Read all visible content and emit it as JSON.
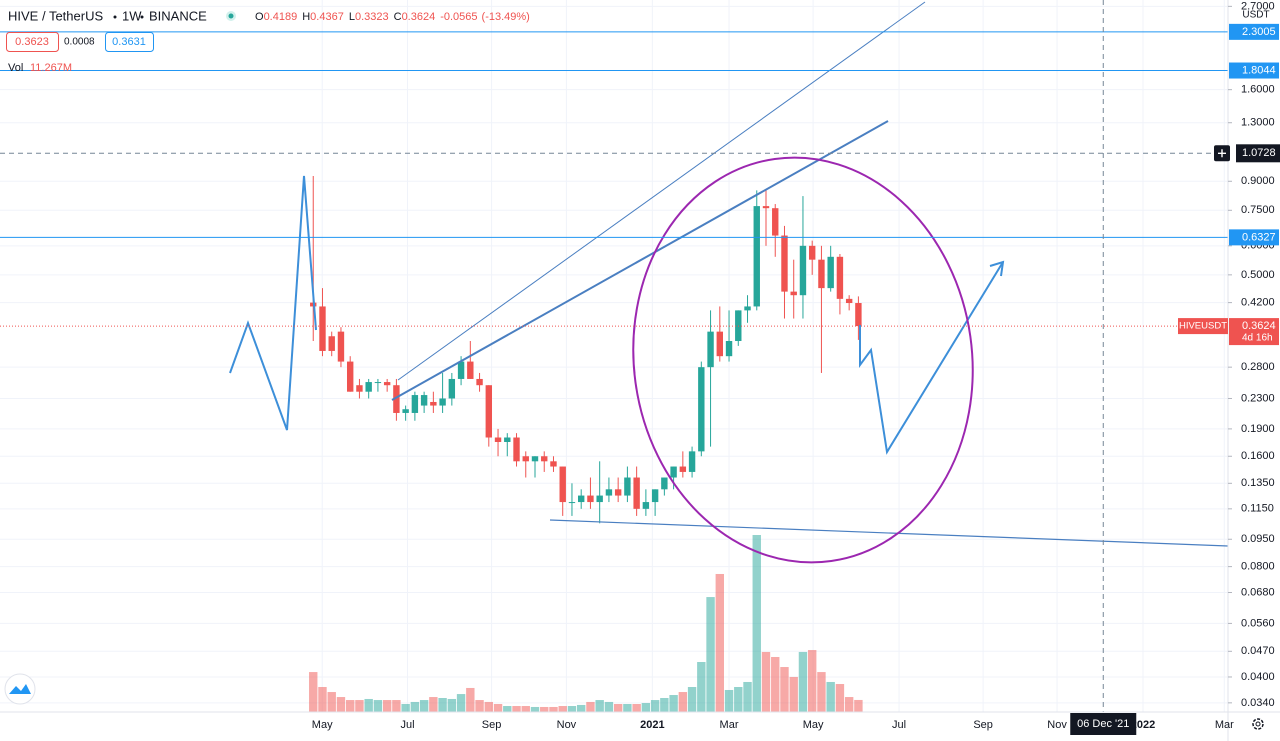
{
  "header": {
    "symbol": "HIVE / TetherUS",
    "interval": "1W",
    "exchange": "BINANCE",
    "ohlc_keys": [
      "O",
      "H",
      "L",
      "C"
    ],
    "change": -0.0565,
    "change_pct": {
      "value": -13.49,
      "label": "(-13.49%)"
    }
  },
  "quote": {
    "bid": 0.3623,
    "spread": 0.0008,
    "ask": 0.3631
  },
  "chart_data": {
    "type": "candlestick",
    "open": [
      0.42,
      0.41,
      0.34,
      0.35,
      0.29,
      0.25,
      0.24,
      0.255,
      0.255,
      0.25,
      0.21,
      0.21,
      0.22,
      0.225,
      0.22,
      0.23,
      0.26,
      0.29,
      0.26,
      0.25,
      0.18,
      0.175,
      0.18,
      0.16,
      0.155,
      0.16,
      0.155,
      0.15,
      0.12,
      0.12,
      0.125,
      0.12,
      0.125,
      0.13,
      0.125,
      0.14,
      0.115,
      0.12,
      0.13,
      0.14,
      0.15,
      0.145,
      0.165,
      0.28,
      0.35,
      0.3,
      0.33,
      0.4,
      0.41,
      0.77,
      0.76,
      0.64,
      0.45,
      0.44,
      0.6,
      0.55,
      0.46,
      0.56,
      0.43,
      0.4189
    ],
    "high": [
      0.93,
      0.46,
      0.35,
      0.36,
      0.3,
      0.26,
      0.26,
      0.26,
      0.26,
      0.26,
      0.22,
      0.24,
      0.24,
      0.24,
      0.27,
      0.27,
      0.3,
      0.33,
      0.27,
      0.25,
      0.19,
      0.185,
      0.185,
      0.165,
      0.16,
      0.165,
      0.16,
      0.15,
      0.135,
      0.13,
      0.14,
      0.155,
      0.14,
      0.14,
      0.15,
      0.15,
      0.13,
      0.13,
      0.14,
      0.15,
      0.165,
      0.17,
      0.29,
      0.4,
      0.41,
      0.4,
      0.4,
      0.44,
      0.85,
      0.85,
      0.78,
      0.68,
      0.55,
      0.82,
      0.62,
      0.6,
      0.6,
      0.57,
      0.44,
      0.4367
    ],
    "low": [
      0.33,
      0.3,
      0.3,
      0.28,
      0.24,
      0.23,
      0.23,
      0.24,
      0.24,
      0.2,
      0.2,
      0.2,
      0.21,
      0.21,
      0.21,
      0.22,
      0.25,
      0.26,
      0.24,
      0.17,
      0.16,
      0.16,
      0.15,
      0.14,
      0.14,
      0.145,
      0.145,
      0.11,
      0.11,
      0.115,
      0.115,
      0.105,
      0.12,
      0.12,
      0.12,
      0.11,
      0.11,
      0.11,
      0.125,
      0.13,
      0.14,
      0.14,
      0.16,
      0.17,
      0.29,
      0.29,
      0.32,
      0.37,
      0.4,
      0.6,
      0.56,
      0.38,
      0.38,
      0.38,
      0.5,
      0.27,
      0.45,
      0.39,
      0.4,
      0.3323
    ],
    "close": [
      0.41,
      0.31,
      0.31,
      0.29,
      0.24,
      0.24,
      0.255,
      0.255,
      0.25,
      0.21,
      0.215,
      0.235,
      0.235,
      0.22,
      0.23,
      0.26,
      0.29,
      0.26,
      0.25,
      0.18,
      0.175,
      0.18,
      0.155,
      0.155,
      0.16,
      0.155,
      0.15,
      0.12,
      0.12,
      0.125,
      0.12,
      0.125,
      0.13,
      0.125,
      0.14,
      0.115,
      0.12,
      0.13,
      0.14,
      0.15,
      0.145,
      0.165,
      0.28,
      0.35,
      0.3,
      0.33,
      0.4,
      0.41,
      0.77,
      0.76,
      0.64,
      0.45,
      0.44,
      0.6,
      0.55,
      0.46,
      0.56,
      0.43,
      0.4189,
      0.3624
    ],
    "up_color": "#26a69a",
    "down_color": "#ef5350",
    "log_scale": true,
    "grid": true,
    "ylim": [
      0.0321,
      2.81
    ],
    "yticks": [
      {
        "value": 0.034,
        "label": "0.0340"
      },
      {
        "value": 0.04,
        "label": "0.0400"
      },
      {
        "value": 0.047,
        "label": "0.0470"
      },
      {
        "value": 0.056,
        "label": "0.0560"
      },
      {
        "value": 0.068,
        "label": "0.0680"
      },
      {
        "value": 0.08,
        "label": "0.0800"
      },
      {
        "value": 0.095,
        "label": "0.0950"
      },
      {
        "value": 0.115,
        "label": "0.1150"
      },
      {
        "value": 0.135,
        "label": "0.1350"
      },
      {
        "value": 0.16,
        "label": "0.1600"
      },
      {
        "value": 0.19,
        "label": "0.1900"
      },
      {
        "value": 0.23,
        "label": "0.2300"
      },
      {
        "value": 0.28,
        "label": "0.2800"
      },
      {
        "value": 0.42,
        "label": "0.4200"
      },
      {
        "value": 0.5,
        "label": "0.5000"
      },
      {
        "value": 0.6,
        "label": "0.6000"
      },
      {
        "value": 0.75,
        "label": "0.7500"
      },
      {
        "value": 0.9,
        "label": "0.9000"
      },
      {
        "value": 1.3,
        "label": "1.3000"
      },
      {
        "value": 1.6,
        "label": "1.6000"
      },
      {
        "value": 2.7,
        "label": "2.7000"
      }
    ],
    "xlim": [
      -33.9,
      99
    ],
    "xticks": [
      {
        "value": 0.97,
        "label": "May"
      },
      {
        "value": 10.2,
        "label": "Jul"
      },
      {
        "value": 19.3,
        "label": "Sep"
      },
      {
        "value": 27.4,
        "label": "Nov"
      },
      {
        "value": 36.7,
        "label": "2021"
      },
      {
        "value": 45.0,
        "label": "Mar"
      },
      {
        "value": 54.1,
        "label": "May"
      },
      {
        "value": 63.4,
        "label": "Jul"
      },
      {
        "value": 72.5,
        "label": "Sep"
      },
      {
        "value": 80.5,
        "label": "Nov"
      },
      {
        "value": 89.8,
        "label": "2022"
      },
      {
        "value": 98.6,
        "label": "Mar"
      }
    ],
    "volume": {
      "name": "Vol",
      "current_label": "11.267M",
      "ylim": [
        0,
        220000000
      ],
      "values": [
        37400000,
        23400000,
        18700000,
        14000000,
        11200000,
        11200000,
        12200000,
        11200000,
        11200000,
        11200000,
        7500000,
        9400000,
        11200000,
        14000000,
        13100000,
        12200000,
        16800000,
        22500000,
        11200000,
        9400000,
        7500000,
        5600000,
        5600000,
        5600000,
        4700000,
        4700000,
        4700000,
        5600000,
        5600000,
        6600000,
        9400000,
        11200000,
        9400000,
        7500000,
        7500000,
        7500000,
        8400000,
        11200000,
        13100000,
        15900000,
        18700000,
        23400000,
        46800000,
        107600000,
        129200000,
        20600000,
        23400000,
        28100000,
        165700000,
        56200000,
        51500000,
        42100000,
        32800000,
        56200000,
        58000000,
        37400000,
        28100000,
        26200000,
        14000000,
        11267000
      ]
    },
    "hlines": [
      {
        "value": 2.3005,
        "color": "#2196f3"
      },
      {
        "value": 1.8044,
        "color": "#2196f3"
      },
      {
        "value": 0.6327,
        "color": "#2196f3"
      }
    ],
    "crosshair": {
      "price": 1.0728,
      "x": 85.5,
      "date_label": "06 Dec '21"
    },
    "price_tag": {
      "symbol": "HIVEUSDT",
      "countdown": "4d 16h"
    },
    "currency": "USDT"
  }
}
